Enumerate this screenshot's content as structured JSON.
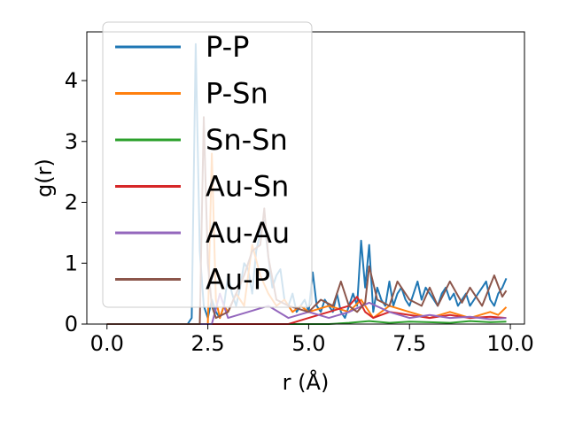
{
  "chart_data": {
    "type": "line",
    "xlabel": "r (Å)",
    "ylabel": "g(r)",
    "xlim": [
      -0.5,
      10.35
    ],
    "ylim": [
      0,
      4.8
    ],
    "xticks": [
      "0.0",
      "2.5",
      "5.0",
      "7.5",
      "10.0"
    ],
    "yticks": [
      "0",
      "1",
      "2",
      "3",
      "4"
    ],
    "legend_position": "top-left",
    "grid": false,
    "series": [
      {
        "name": "P-P",
        "color": "#1f77b4",
        "x": [
          0.0,
          2.0,
          2.1,
          2.2,
          2.3,
          2.4,
          2.5,
          2.6,
          2.7,
          2.8,
          2.9,
          3.0,
          3.1,
          3.2,
          3.3,
          3.4,
          3.5,
          3.6,
          3.7,
          3.8,
          3.9,
          4.0,
          4.1,
          4.2,
          4.3,
          4.4,
          4.5,
          4.6,
          4.7,
          4.8,
          4.9,
          5.0,
          5.1,
          5.2,
          5.3,
          5.4,
          5.5,
          5.6,
          5.7,
          5.8,
          5.9,
          6.0,
          6.1,
          6.2,
          6.3,
          6.4,
          6.5,
          6.6,
          6.7,
          6.8,
          6.9,
          7.0,
          7.1,
          7.2,
          7.3,
          7.4,
          7.5,
          7.6,
          7.7,
          7.8,
          7.9,
          8.0,
          8.1,
          8.2,
          8.3,
          8.4,
          8.5,
          8.6,
          8.7,
          8.8,
          8.9,
          9.0,
          9.1,
          9.2,
          9.3,
          9.4,
          9.5,
          9.6,
          9.7,
          9.8,
          9.9
        ],
        "y": [
          0,
          0,
          0.1,
          4.6,
          1.2,
          0.3,
          0.1,
          0.4,
          0.2,
          0.1,
          0.3,
          0.8,
          0.5,
          0.3,
          0.6,
          1.0,
          0.9,
          0.5,
          1.2,
          1.5,
          1.7,
          1.1,
          0.6,
          0.8,
          0.9,
          0.4,
          0.3,
          0.5,
          0.2,
          0.3,
          0.4,
          0.2,
          0.85,
          0.3,
          0.2,
          0.4,
          0.3,
          0.2,
          0.5,
          0.2,
          0.1,
          0.3,
          0.5,
          0.3,
          1.37,
          0.6,
          1.3,
          0.2,
          0.6,
          0.4,
          0.3,
          0.7,
          0.3,
          0.5,
          0.6,
          0.4,
          0.3,
          0.5,
          0.7,
          0.4,
          0.6,
          0.5,
          0.4,
          0.3,
          0.5,
          0.6,
          0.4,
          0.5,
          0.3,
          0.4,
          0.5,
          0.3,
          0.4,
          0.5,
          0.6,
          0.7,
          0.4,
          0.3,
          0.5,
          0.6,
          0.75
        ]
      },
      {
        "name": "P-Sn",
        "color": "#ff7f0e",
        "x": [
          0.0,
          2.5,
          2.6,
          2.7,
          2.8,
          2.9,
          3.0,
          3.2,
          3.4,
          3.6,
          3.8,
          4.0,
          4.2,
          4.4,
          4.6,
          4.8,
          5.0,
          5.5,
          6.0,
          6.3,
          6.6,
          7.0,
          7.5,
          8.0,
          8.5,
          9.0,
          9.5,
          9.7,
          9.9
        ],
        "y": [
          0,
          0,
          2.8,
          0.4,
          0.1,
          0.3,
          0.2,
          0.5,
          0.3,
          1.3,
          0.8,
          0.5,
          0.3,
          0.4,
          0.2,
          0.3,
          0.2,
          0.3,
          0.2,
          0.4,
          0.1,
          0.3,
          0.2,
          0.1,
          0.2,
          0.1,
          0.2,
          0.15,
          0.28
        ]
      },
      {
        "name": "Sn-Sn",
        "color": "#2ca02c",
        "x": [
          0.0,
          5.5,
          6.0,
          6.5,
          7.0,
          7.5,
          8.0,
          8.5,
          9.0,
          9.5,
          9.9
        ],
        "y": [
          0,
          0,
          0.02,
          0.05,
          0.02,
          0.04,
          0.03,
          0.02,
          0.05,
          0.03,
          0.04
        ]
      },
      {
        "name": "Au-Sn",
        "color": "#d62728",
        "x": [
          0.0,
          4.5,
          5.0,
          5.5,
          6.0,
          6.2,
          6.4,
          6.6,
          7.0,
          7.5,
          8.0,
          8.5,
          9.0,
          9.5,
          9.9
        ],
        "y": [
          0,
          0,
          0.1,
          0.2,
          0.3,
          0.45,
          0.2,
          0.1,
          0.2,
          0.15,
          0.1,
          0.15,
          0.1,
          0.12,
          0.1
        ]
      },
      {
        "name": "Au-Au",
        "color": "#9467bd",
        "x": [
          0.0,
          2.6,
          2.8,
          3.0,
          3.5,
          4.0,
          4.5,
          5.0,
          5.5,
          6.0,
          6.5,
          7.0,
          7.5,
          8.0,
          8.5,
          9.0,
          9.5,
          9.9
        ],
        "y": [
          0,
          0,
          0.5,
          0.1,
          0.2,
          0.3,
          0.1,
          0.2,
          0.1,
          0.2,
          0.35,
          0.2,
          0.1,
          0.15,
          0.1,
          0.12,
          0.08,
          0.1
        ]
      },
      {
        "name": "Au-P",
        "color": "#8c564b",
        "x": [
          0.0,
          2.3,
          2.4,
          2.5,
          2.6,
          2.7,
          3.0,
          3.4,
          3.6,
          3.8,
          3.9,
          4.0,
          4.2,
          4.5,
          5.0,
          5.3,
          5.6,
          5.8,
          6.0,
          6.2,
          6.4,
          6.5,
          6.7,
          7.0,
          7.2,
          7.5,
          7.8,
          8.0,
          8.2,
          8.5,
          8.8,
          9.0,
          9.3,
          9.6,
          9.8,
          9.9
        ],
        "y": [
          0,
          0,
          3.4,
          1.0,
          0.3,
          0.1,
          0.2,
          0.8,
          1.2,
          1.3,
          1.9,
          1.1,
          0.4,
          0.3,
          0.2,
          0.4,
          0.3,
          0.7,
          0.3,
          0.2,
          0.35,
          0.95,
          0.4,
          0.3,
          0.7,
          0.4,
          0.3,
          0.6,
          0.3,
          0.7,
          0.35,
          0.6,
          0.3,
          0.8,
          0.45,
          0.55
        ]
      }
    ]
  }
}
